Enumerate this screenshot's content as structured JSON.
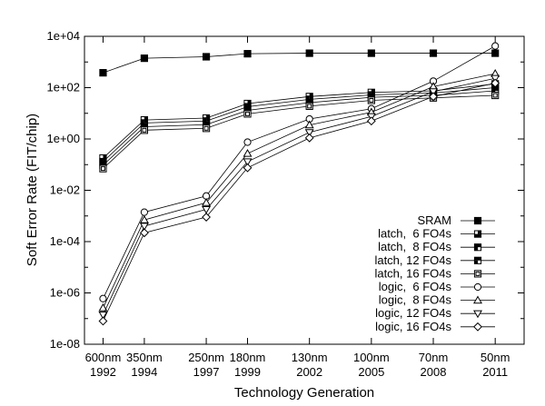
{
  "chart_data": {
    "type": "line",
    "xlabel": "Technology Generation",
    "ylabel": "Soft Error Rate (FIT/chip)",
    "yscale": "log",
    "ylim": [
      1e-08,
      10000.0
    ],
    "categories": [
      {
        "node": "600nm",
        "year": "1992"
      },
      {
        "node": "350nm",
        "year": "1994"
      },
      {
        "node": "250nm",
        "year": "1997"
      },
      {
        "node": "180nm",
        "year": "1999"
      },
      {
        "node": "130nm",
        "year": "2002"
      },
      {
        "node": "100nm",
        "year": "2005"
      },
      {
        "node": "70nm",
        "year": "2008"
      },
      {
        "node": "50nm",
        "year": "2011"
      }
    ],
    "x_positions": [
      1992,
      1994,
      1997,
      1999,
      2002,
      2005,
      2008,
      2011
    ],
    "y_ticks": [
      "1e-08",
      "1e-06",
      "1e-04",
      "1e-02",
      "1e+00",
      "1e+02",
      "1e+04"
    ],
    "legend_position": "bottom-right",
    "series": [
      {
        "name": "SRAM",
        "marker": "filled-square",
        "values": [
          380,
          1400,
          1600,
          2100,
          2200,
          2200,
          2200,
          2200
        ]
      },
      {
        "name": "latch,  6 FO4s",
        "marker": "square-quarter-filled",
        "values": [
          0.18,
          5.5,
          6.5,
          24,
          45,
          65,
          75,
          140
        ]
      },
      {
        "name": "latch,  8 FO4s",
        "marker": "square-half-filled",
        "values": [
          0.13,
          4.2,
          5.0,
          18,
          35,
          52,
          62,
          100
        ]
      },
      {
        "name": "latch, 12 FO4s",
        "marker": "square-three-quarter",
        "values": [
          0.095,
          3.0,
          3.6,
          13,
          26,
          42,
          50,
          75
        ]
      },
      {
        "name": "latch, 16 FO4s",
        "marker": "square-dotted",
        "values": [
          0.07,
          2.2,
          2.6,
          9.5,
          19,
          32,
          40,
          50
        ]
      },
      {
        "name": "logic,  6 FO4s",
        "marker": "circle",
        "values": [
          6e-07,
          0.0014,
          0.006,
          0.75,
          6,
          15,
          180,
          4200
        ]
      },
      {
        "name": "logic,  8 FO4s",
        "marker": "triangle-up",
        "values": [
          2.6e-07,
          0.0007,
          0.0033,
          0.27,
          3.5,
          11,
          110,
          350
        ]
      },
      {
        "name": "logic, 12 FO4s",
        "marker": "triangle-down",
        "values": [
          1.4e-07,
          0.0004,
          0.0018,
          0.13,
          1.8,
          7.5,
          70,
          230
        ]
      },
      {
        "name": "logic, 16 FO4s",
        "marker": "diamond",
        "values": [
          8e-08,
          0.00022,
          0.0009,
          0.075,
          1.1,
          5,
          45,
          150
        ]
      }
    ]
  }
}
